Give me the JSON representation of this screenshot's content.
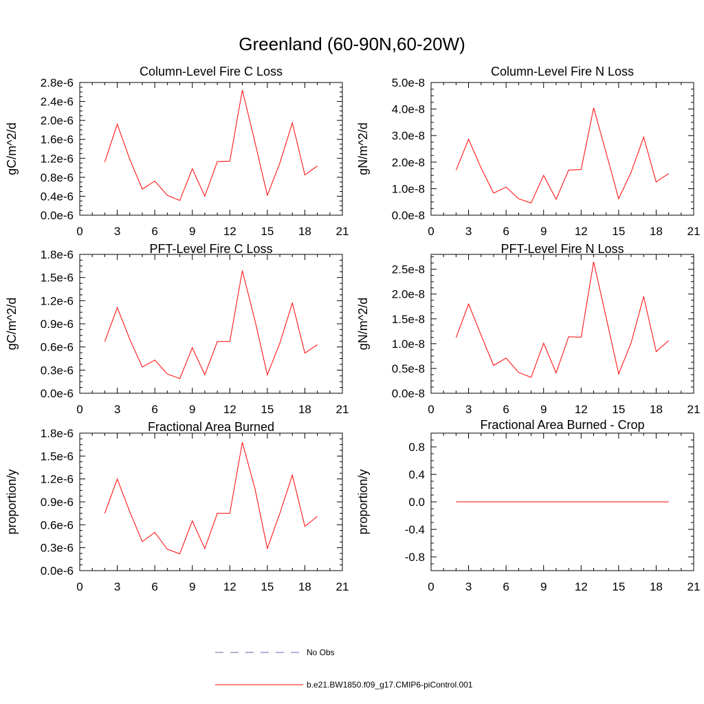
{
  "figure": {
    "title": "Greenland (60-90N,60-20W)"
  },
  "chart_data": [
    {
      "type": "line",
      "title": "Column-Level Fire C Loss",
      "ylabel": "gC/m^2/d",
      "xlabel": "",
      "xlim": [
        0,
        21
      ],
      "ylim": [
        0,
        2.8e-06
      ],
      "xticks": [
        0,
        3,
        6,
        9,
        12,
        15,
        18,
        21
      ],
      "yticks": [
        0,
        4e-07,
        8e-07,
        1.2e-06,
        1.6e-06,
        2e-06,
        2.4e-06,
        2.8e-06
      ],
      "ytick_labels": [
        "0.0e-6",
        "0.4e-6",
        "0.8e-6",
        "1.2e-6",
        "1.6e-6",
        "2.0e-6",
        "2.4e-6",
        "2.8e-6"
      ],
      "x": [
        2,
        3,
        4,
        5,
        6,
        7,
        8,
        9,
        10,
        11,
        12,
        13,
        14,
        15,
        16,
        17,
        18,
        19
      ],
      "series": [
        {
          "name": "b.e21.BW1850.f09_g17.CMIP6-piControl.001",
          "color": "#ff0000",
          "values": [
            1.12e-06,
            1.92e-06,
            1.18e-06,
            5.5e-07,
            7.2e-07,
            4.2e-07,
            3.1e-07,
            9.8e-07,
            4e-07,
            1.13e-06,
            1.14e-06,
            2.64e-06,
            1.55e-06,
            4.2e-07,
            1.1e-06,
            1.95e-06,
            8.5e-07,
            1.04e-06
          ]
        }
      ]
    },
    {
      "type": "line",
      "title": "Column-Level Fire N Loss",
      "ylabel": "gN/m^2/d",
      "xlabel": "",
      "xlim": [
        0,
        21
      ],
      "ylim": [
        0,
        5e-08
      ],
      "xticks": [
        0,
        3,
        6,
        9,
        12,
        15,
        18,
        21
      ],
      "yticks": [
        0,
        1e-08,
        2e-08,
        3e-08,
        4e-08,
        5e-08
      ],
      "ytick_labels": [
        "0.0e-8",
        "1.0e-8",
        "2.0e-8",
        "3.0e-8",
        "4.0e-8",
        "5.0e-8"
      ],
      "x": [
        2,
        3,
        4,
        5,
        6,
        7,
        8,
        9,
        10,
        11,
        12,
        13,
        14,
        15,
        16,
        17,
        18,
        19
      ],
      "series": [
        {
          "name": "b.e21.BW1850.f09_g17.CMIP6-piControl.001",
          "color": "#ff0000",
          "values": [
            1.7e-08,
            2.86e-08,
            1.78e-08,
            8.3e-09,
            1.06e-08,
            6.2e-09,
            4.6e-09,
            1.5e-08,
            6e-09,
            1.7e-08,
            1.72e-08,
            4.04e-08,
            2.35e-08,
            6.2e-09,
            1.62e-08,
            2.94e-08,
            1.25e-08,
            1.57e-08
          ]
        }
      ]
    },
    {
      "type": "line",
      "title": "PFT-Level Fire C Loss",
      "ylabel": "gC/m^2/d",
      "xlabel": "",
      "xlim": [
        0,
        21
      ],
      "ylim": [
        0,
        1.8e-06
      ],
      "xticks": [
        0,
        3,
        6,
        9,
        12,
        15,
        18,
        21
      ],
      "yticks": [
        0,
        3e-07,
        6e-07,
        9e-07,
        1.2e-06,
        1.5e-06,
        1.8e-06
      ],
      "ytick_labels": [
        "0.0e-6",
        "0.3e-6",
        "0.6e-6",
        "0.9e-6",
        "1.2e-6",
        "1.5e-6",
        "1.8e-6"
      ],
      "x": [
        2,
        3,
        4,
        5,
        6,
        7,
        8,
        9,
        10,
        11,
        12,
        13,
        14,
        15,
        16,
        17,
        18,
        19
      ],
      "series": [
        {
          "name": "b.e21.BW1850.f09_g17.CMIP6-piControl.001",
          "color": "#ff0000",
          "values": [
            6.7e-07,
            1.11e-06,
            7e-07,
            3.4e-07,
            4.3e-07,
            2.5e-07,
            1.9e-07,
            5.9e-07,
            2.4e-07,
            6.7e-07,
            6.7e-07,
            1.59e-06,
            9.5e-07,
            2.4e-07,
            6.5e-07,
            1.17e-06,
            5.2e-07,
            6.3e-07
          ]
        }
      ]
    },
    {
      "type": "line",
      "title": "PFT-Level Fire N Loss",
      "ylabel": "gN/m^2/d",
      "xlabel": "",
      "xlim": [
        0,
        21
      ],
      "ylim": [
        0,
        2.8e-08
      ],
      "xticks": [
        0,
        3,
        6,
        9,
        12,
        15,
        18,
        21
      ],
      "yticks": [
        0,
        5e-09,
        1e-08,
        1.5e-08,
        2e-08,
        2.5e-08
      ],
      "ytick_labels": [
        "0.0e-8",
        "0.5e-8",
        "1.0e-8",
        "1.5e-8",
        "2.0e-8",
        "2.5e-8"
      ],
      "x": [
        2,
        3,
        4,
        5,
        6,
        7,
        8,
        9,
        10,
        11,
        12,
        13,
        14,
        15,
        16,
        17,
        18,
        19
      ],
      "series": [
        {
          "name": "b.e21.BW1850.f09_g17.CMIP6-piControl.001",
          "color": "#ff0000",
          "values": [
            1.12e-08,
            1.8e-08,
            1.17e-08,
            5.6e-09,
            7.1e-09,
            4.2e-09,
            3.2e-09,
            1.01e-08,
            4.1e-09,
            1.14e-08,
            1.13e-08,
            2.65e-08,
            1.53e-08,
            3.9e-09,
            1.02e-08,
            1.95e-08,
            8.4e-09,
            1.06e-08
          ]
        }
      ]
    },
    {
      "type": "line",
      "title": "Fractional Area Burned",
      "ylabel": "proportion/y",
      "xlabel": "",
      "xlim": [
        0,
        21
      ],
      "ylim": [
        0,
        1.8e-06
      ],
      "xticks": [
        0,
        3,
        6,
        9,
        12,
        15,
        18,
        21
      ],
      "yticks": [
        0,
        3e-07,
        6e-07,
        9e-07,
        1.2e-06,
        1.5e-06,
        1.8e-06
      ],
      "ytick_labels": [
        "0.0e-6",
        "0.3e-6",
        "0.6e-6",
        "0.9e-6",
        "1.2e-6",
        "1.5e-6",
        "1.8e-6"
      ],
      "x": [
        2,
        3,
        4,
        5,
        6,
        7,
        8,
        9,
        10,
        11,
        12,
        13,
        14,
        15,
        16,
        17,
        18,
        19
      ],
      "series": [
        {
          "name": "b.e21.BW1850.f09_g17.CMIP6-piControl.001",
          "color": "#ff0000",
          "values": [
            7.5e-07,
            1.2e-06,
            7.7e-07,
            3.8e-07,
            5e-07,
            2.8e-07,
            2.2e-07,
            6.5e-07,
            2.9e-07,
            7.5e-07,
            7.5e-07,
            1.68e-06,
            1.08e-06,
            2.9e-07,
            7.5e-07,
            1.25e-06,
            5.8e-07,
            7.1e-07
          ]
        }
      ]
    },
    {
      "type": "line",
      "title": "Fractional Area Burned - Crop",
      "ylabel": "proportion/y",
      "xlabel": "",
      "xlim": [
        0,
        21
      ],
      "ylim": [
        -1.0,
        1.0
      ],
      "xticks": [
        0,
        3,
        6,
        9,
        12,
        15,
        18,
        21
      ],
      "yticks": [
        -0.8,
        -0.4,
        0.0,
        0.4,
        0.8
      ],
      "ytick_labels": [
        "-0.8",
        "-0.4",
        "0.0",
        "0.4",
        "0.8"
      ],
      "x": [
        2,
        3,
        4,
        5,
        6,
        7,
        8,
        9,
        10,
        11,
        12,
        13,
        14,
        15,
        16,
        17,
        18,
        19
      ],
      "series": [
        {
          "name": "b.e21.BW1850.f09_g17.CMIP6-piControl.001",
          "color": "#ff0000",
          "values": [
            0,
            0,
            0,
            0,
            0,
            0,
            0,
            0,
            0,
            0,
            0,
            0,
            0,
            0,
            0,
            0,
            0,
            0
          ]
        }
      ]
    }
  ],
  "legend": {
    "items": [
      {
        "label": "No Obs",
        "color": "#6666aa",
        "style": "dashed"
      },
      {
        "label": "b.e21.BW1850.f09_g17.CMIP6-piControl.001",
        "color": "#ff0000",
        "style": "solid"
      }
    ]
  }
}
